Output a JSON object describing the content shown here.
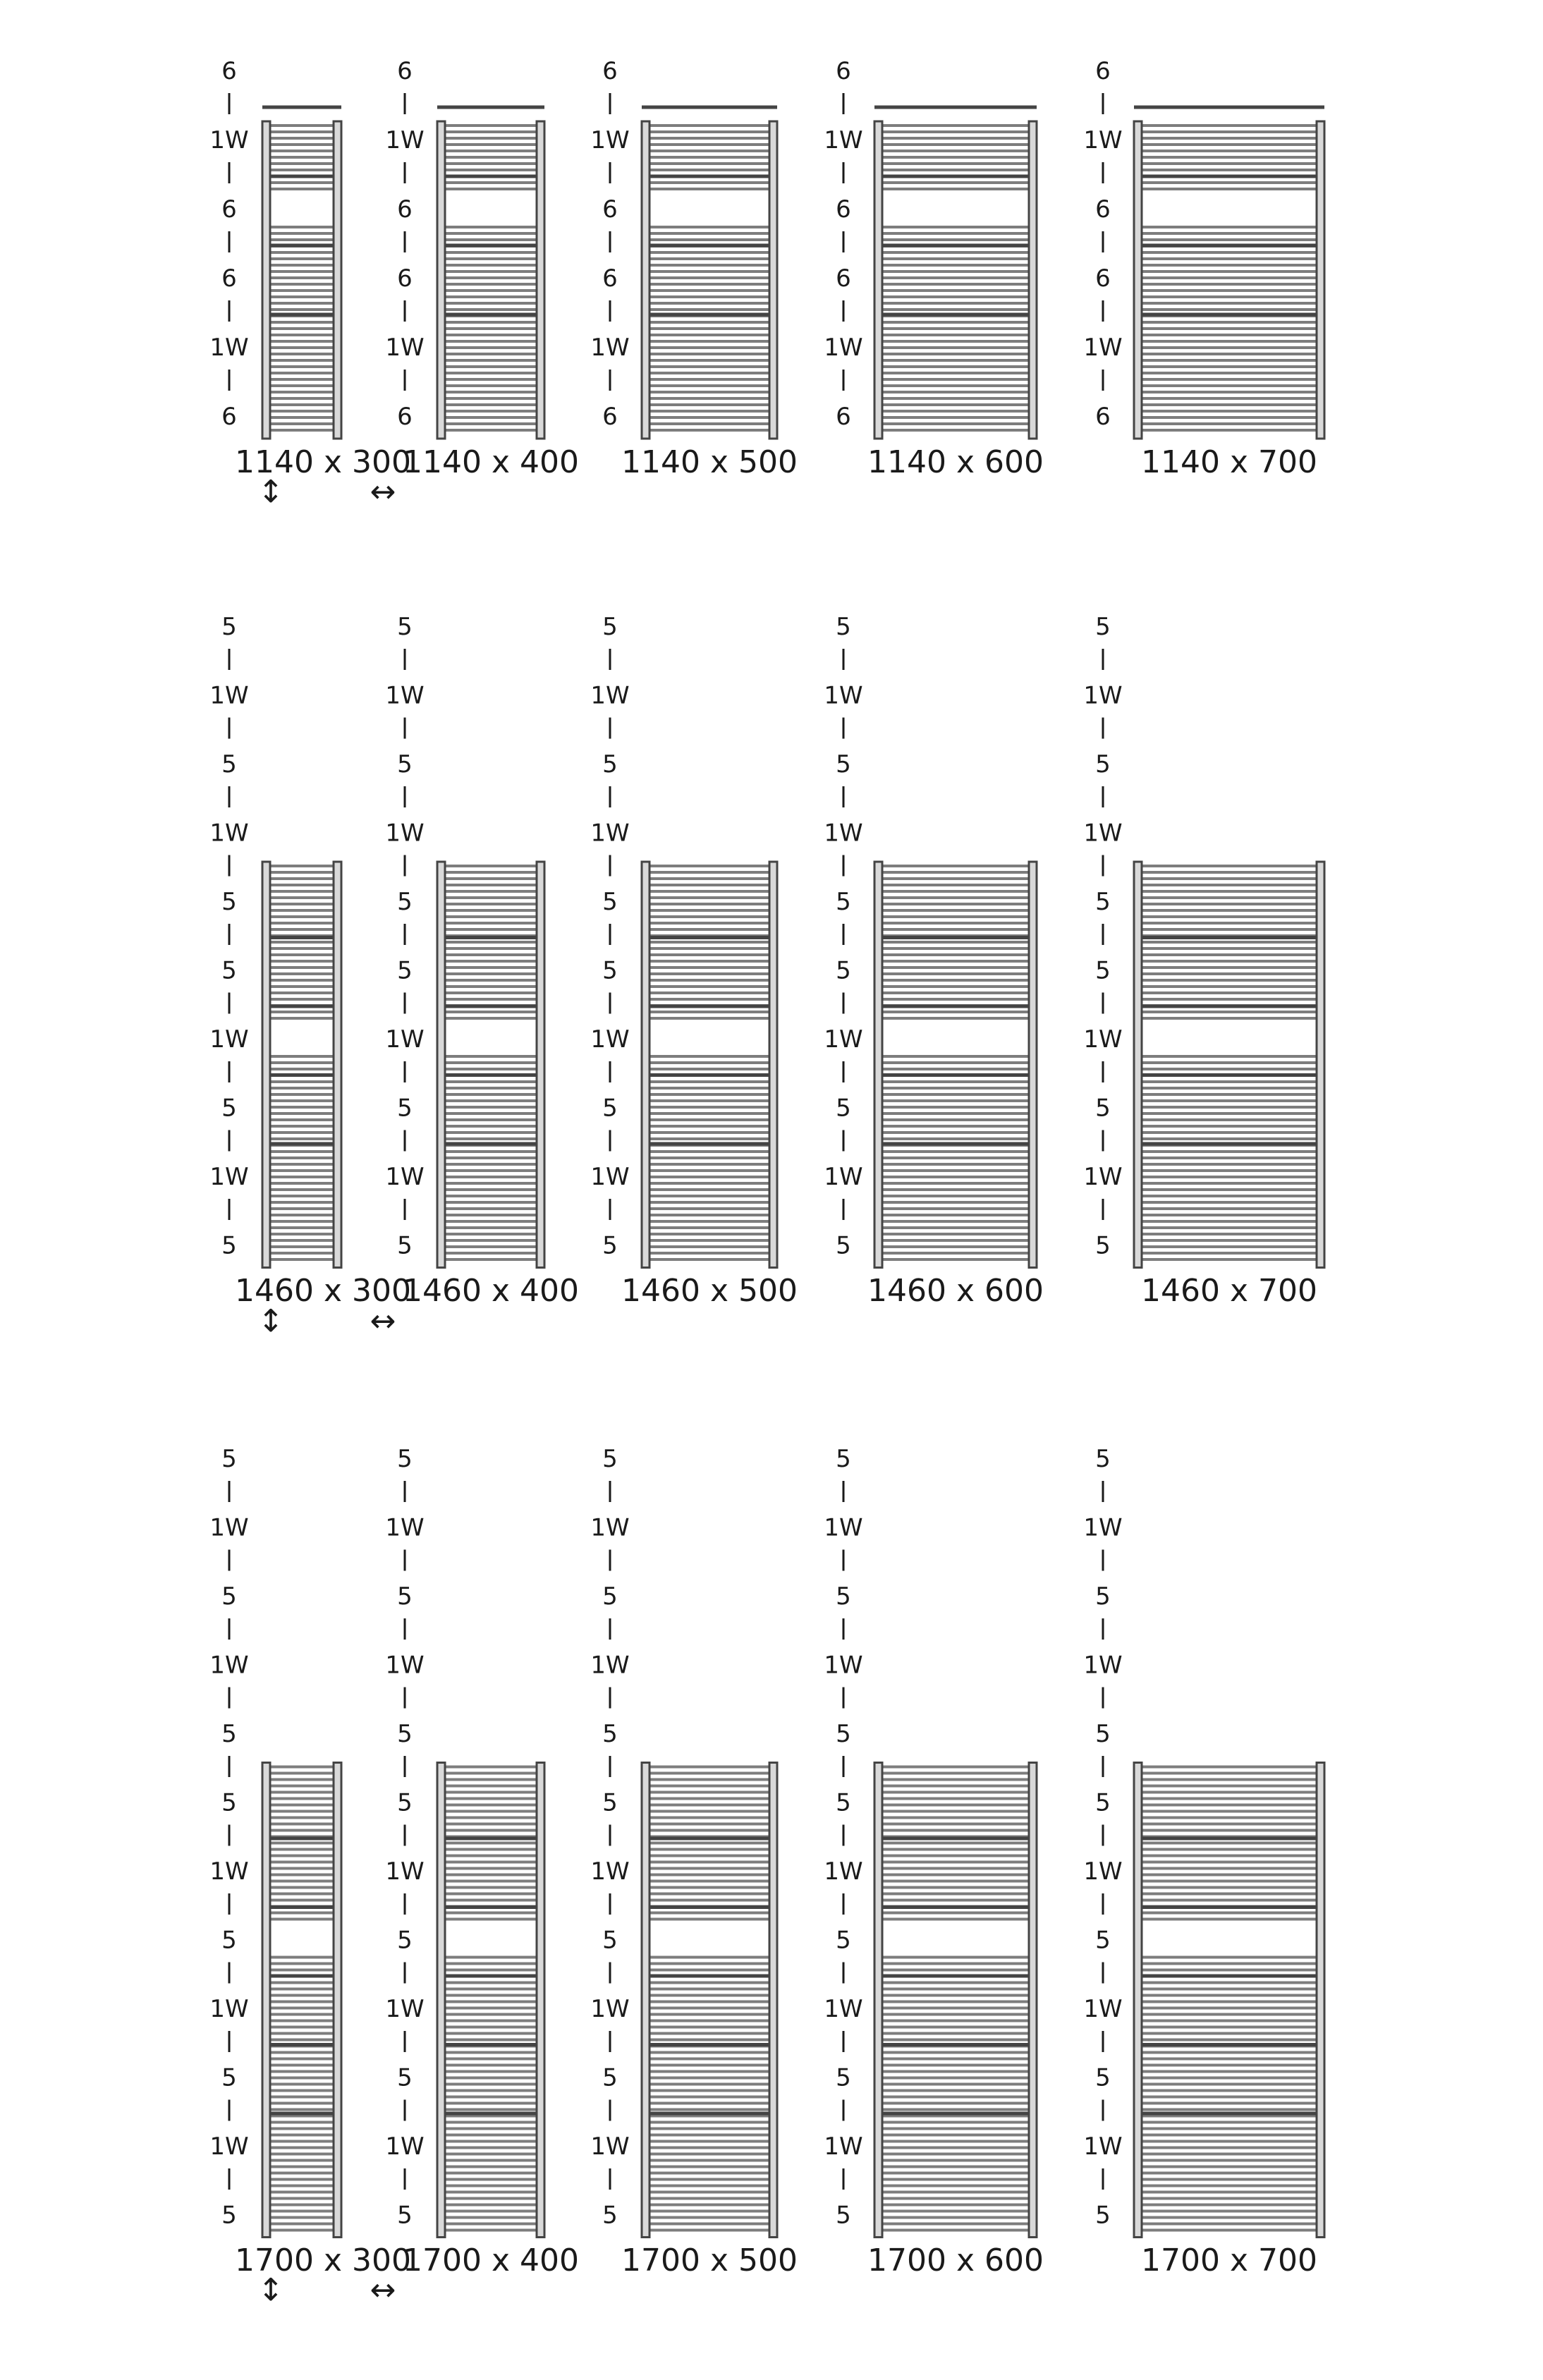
{
  "colors": {
    "frame": "#444444",
    "bar": "#7d7d7d",
    "bar_fill": "#d9d9d9",
    "gap": "#ffffff",
    "text": "#1a1a1a"
  },
  "rows": [
    {
      "labels": [
        "6",
        "1W",
        "6",
        "6",
        "1W",
        "6"
      ],
      "gap_after_section": 2,
      "radiators": [
        {
          "caption": "1140 x 300"
        },
        {
          "caption": "1140 x 400"
        },
        {
          "caption": "1140 x 500"
        },
        {
          "caption": "1140 x 600"
        },
        {
          "caption": "1140 x 700"
        }
      ],
      "height_symbol": "↕",
      "width_symbol": "↔"
    },
    {
      "labels": [
        "5",
        "1W",
        "5",
        "1W",
        "5",
        "5",
        "1W",
        "5",
        "1W",
        "5"
      ],
      "radiator_starts_at_label": 4,
      "gap_after_section": 6,
      "radiators": [
        {
          "caption": "1460 x 300"
        },
        {
          "caption": "1460 x 400"
        },
        {
          "caption": "1460 x 500"
        },
        {
          "caption": "1460 x 600"
        },
        {
          "caption": "1460 x 700"
        }
      ],
      "height_symbol": "↕",
      "width_symbol": "↔"
    },
    {
      "labels": [
        "5",
        "1W",
        "5",
        "1W",
        "5",
        "5",
        "1W",
        "5",
        "1W",
        "5",
        "1W",
        "5"
      ],
      "radiator_starts_at_label": 5,
      "gap_after_section": 7,
      "radiators": [
        {
          "caption": "1700 x 300"
        },
        {
          "caption": "1700 x 400"
        },
        {
          "caption": "1700 x 500"
        },
        {
          "caption": "1700 x 600"
        },
        {
          "caption": "1700 x 700"
        }
      ],
      "height_symbol": "↕",
      "width_symbol": "↔"
    }
  ]
}
